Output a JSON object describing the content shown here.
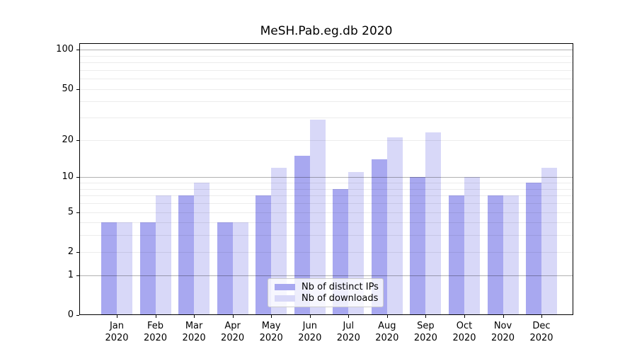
{
  "chart_data": {
    "type": "bar",
    "title": "MeSH.Pab.eg.db 2020",
    "categories": [
      "Jan",
      "Feb",
      "Mar",
      "Apr",
      "May",
      "Jun",
      "Jul",
      "Aug",
      "Sep",
      "Oct",
      "Nov",
      "Dec"
    ],
    "year": "2020",
    "series": [
      {
        "name": "Nb of distinct IPs",
        "color": "#a8a8f0",
        "values": [
          4,
          4,
          7,
          4,
          7,
          15,
          8,
          14,
          10,
          7,
          7,
          9
        ]
      },
      {
        "name": "Nb of downloads",
        "color": "#d8d8f8",
        "values": [
          4,
          7,
          9,
          4,
          12,
          29,
          11,
          21,
          23,
          10,
          7,
          12
        ]
      }
    ],
    "yscale": "log1p",
    "ylim": [
      0,
      112
    ],
    "yticks": [
      0,
      1,
      2,
      5,
      10,
      20,
      50,
      100
    ],
    "grid_major": [
      1,
      10,
      100
    ],
    "grid_minor": [
      2,
      3,
      4,
      5,
      6,
      7,
      8,
      9,
      20,
      30,
      40,
      50,
      60,
      70,
      80,
      90
    ],
    "grid": "on",
    "legend_position": "lower-center",
    "xlabel": "",
    "ylabel": ""
  }
}
